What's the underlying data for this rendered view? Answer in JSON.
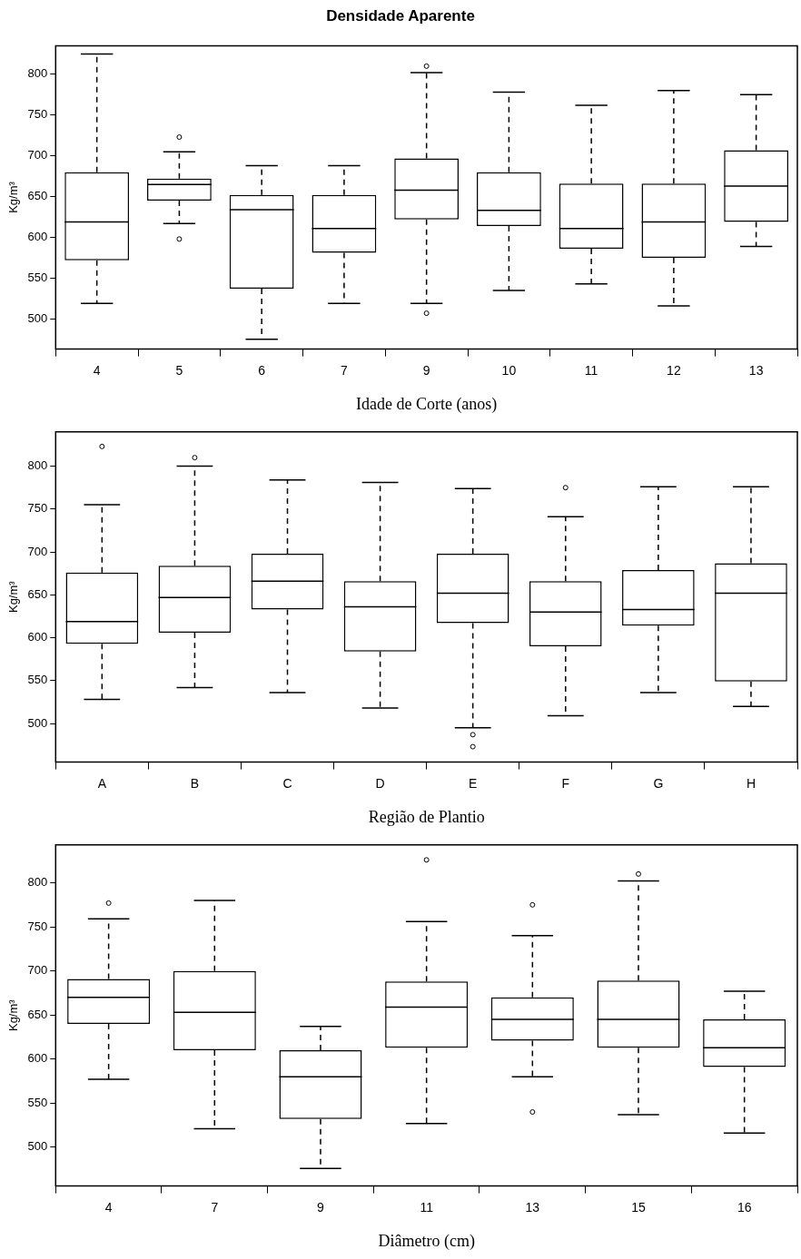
{
  "chart_data": [
    {
      "type": "box",
      "title": "Densidade Aparente",
      "xlabel": "Idade de Corte (anos)",
      "ylabel": "Kg/m³",
      "categories": [
        "4",
        "5",
        "6",
        "7",
        "9",
        "10",
        "11",
        "12",
        "13"
      ],
      "ylim": [
        463,
        835
      ],
      "yticks": [
        500,
        550,
        600,
        650,
        700,
        750,
        800
      ],
      "grid": false,
      "boxes": [
        {
          "low": 519,
          "q1": 572,
          "median": 619,
          "q3": 680,
          "high": 825
        },
        {
          "low": 617,
          "q1": 645,
          "median": 665,
          "q3": 672,
          "high": 705,
          "outliers": [
            723,
            598
          ]
        },
        {
          "low": 475,
          "q1": 537,
          "median": 634,
          "q3": 652,
          "high": 688
        },
        {
          "low": 519,
          "q1": 581,
          "median": 611,
          "q3": 652,
          "high": 688
        },
        {
          "low": 519,
          "q1": 622,
          "median": 658,
          "q3": 697,
          "high": 802,
          "outliers": [
            810,
            507
          ]
        },
        {
          "low": 535,
          "q1": 614,
          "median": 633,
          "q3": 680,
          "high": 778
        },
        {
          "low": 543,
          "q1": 586,
          "median": 611,
          "q3": 666,
          "high": 762
        },
        {
          "low": 516,
          "q1": 575,
          "median": 619,
          "q3": 666,
          "high": 780
        },
        {
          "low": 589,
          "q1": 619,
          "median": 663,
          "q3": 707,
          "high": 775
        }
      ]
    },
    {
      "type": "box",
      "xlabel": "Região de Plantio",
      "ylabel": "Kg/m³",
      "categories": [
        "A",
        "B",
        "C",
        "D",
        "E",
        "F",
        "G",
        "H"
      ],
      "ylim": [
        455,
        840
      ],
      "yticks": [
        500,
        550,
        600,
        650,
        700,
        750,
        800
      ],
      "grid": false,
      "boxes": [
        {
          "low": 528,
          "q1": 593,
          "median": 619,
          "q3": 676,
          "high": 755,
          "outliers": [
            823
          ]
        },
        {
          "low": 542,
          "q1": 606,
          "median": 647,
          "q3": 684,
          "high": 800,
          "outliers": [
            810
          ]
        },
        {
          "low": 536,
          "q1": 633,
          "median": 666,
          "q3": 698,
          "high": 784
        },
        {
          "low": 518,
          "q1": 584,
          "median": 636,
          "q3": 666,
          "high": 781
        },
        {
          "low": 495,
          "q1": 617,
          "median": 652,
          "q3": 698,
          "high": 774,
          "outliers": [
            487,
            473
          ]
        },
        {
          "low": 509,
          "q1": 590,
          "median": 630,
          "q3": 666,
          "high": 741,
          "outliers": [
            775
          ]
        },
        {
          "low": 536,
          "q1": 614,
          "median": 633,
          "q3": 679,
          "high": 776
        },
        {
          "low": 520,
          "q1": 549,
          "median": 652,
          "q3": 687,
          "high": 776
        }
      ]
    },
    {
      "type": "box",
      "xlabel": "Diâmetro (cm)",
      "ylabel": "Kg/m³",
      "categories": [
        "4",
        "7",
        "9",
        "11",
        "13",
        "15",
        "16"
      ],
      "ylim": [
        456,
        843
      ],
      "yticks": [
        500,
        550,
        600,
        650,
        700,
        750,
        800
      ],
      "grid": false,
      "boxes": [
        {
          "low": 577,
          "q1": 640,
          "median": 670,
          "q3": 691,
          "high": 759,
          "outliers": [
            777
          ]
        },
        {
          "low": 521,
          "q1": 610,
          "median": 653,
          "q3": 700,
          "high": 780
        },
        {
          "low": 476,
          "q1": 532,
          "median": 580,
          "q3": 610,
          "high": 637
        },
        {
          "low": 527,
          "q1": 613,
          "median": 659,
          "q3": 688,
          "high": 756,
          "outliers": [
            826
          ]
        },
        {
          "low": 580,
          "q1": 621,
          "median": 645,
          "q3": 670,
          "high": 740,
          "outliers": [
            775,
            540
          ]
        },
        {
          "low": 537,
          "q1": 613,
          "median": 645,
          "q3": 689,
          "high": 802,
          "outliers": [
            810
          ]
        },
        {
          "low": 516,
          "q1": 591,
          "median": 613,
          "q3": 645,
          "high": 677
        }
      ]
    }
  ]
}
